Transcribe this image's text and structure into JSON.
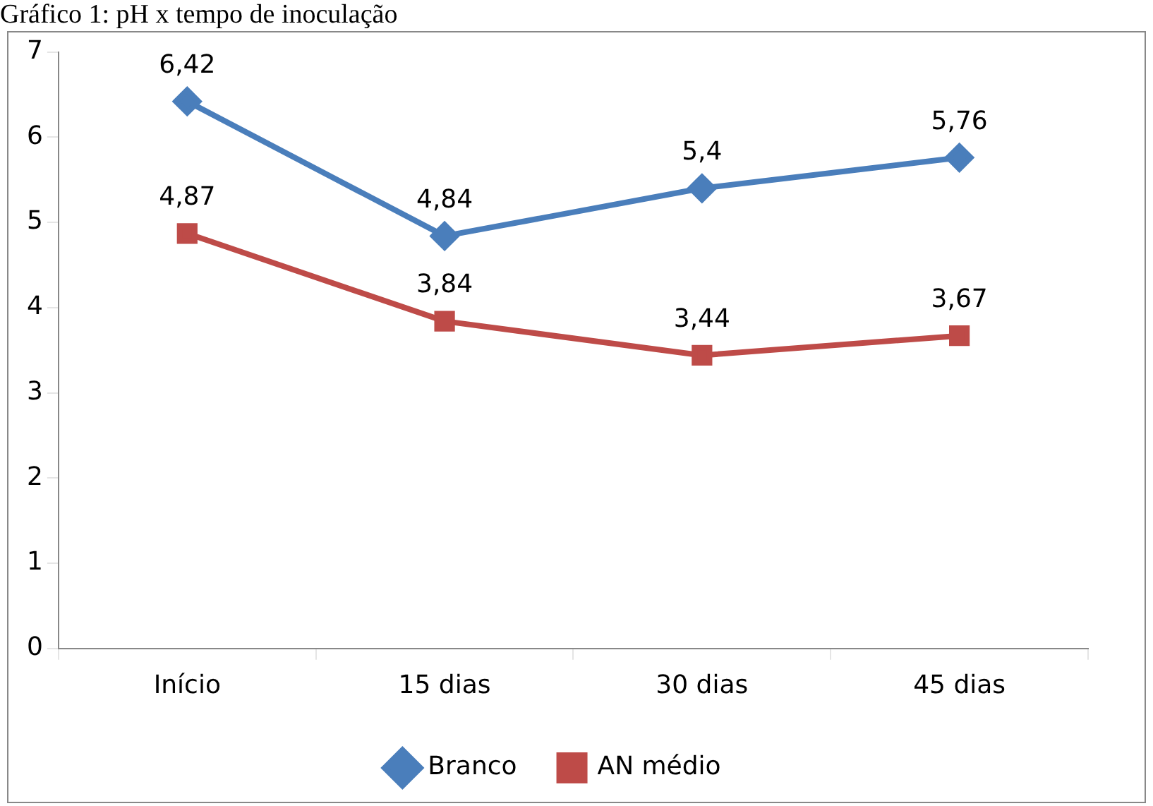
{
  "chart_data": {
    "type": "line",
    "title": "Gráfico 1: pH x tempo de inoculação",
    "categories": [
      "Início",
      "15 dias",
      "30 dias",
      "45 dias"
    ],
    "series": [
      {
        "name": "Branco",
        "color": "#4a7ebb",
        "values": [
          6.42,
          4.84,
          5.4,
          5.76
        ],
        "value_labels": [
          "6,42",
          "4,84",
          "5,4",
          "5,76"
        ],
        "marker": "diamond"
      },
      {
        "name": "AN médio",
        "color": "#be4b48",
        "values": [
          4.87,
          3.84,
          3.44,
          3.67
        ],
        "value_labels": [
          "4,87",
          "3,84",
          "3,44",
          "3,67"
        ],
        "marker": "square"
      }
    ],
    "ylim": [
      0,
      7
    ],
    "yticks": [
      0,
      1,
      2,
      3,
      4,
      5,
      6,
      7
    ],
    "grid": false,
    "legend": "bottom",
    "line_style": "solid"
  }
}
